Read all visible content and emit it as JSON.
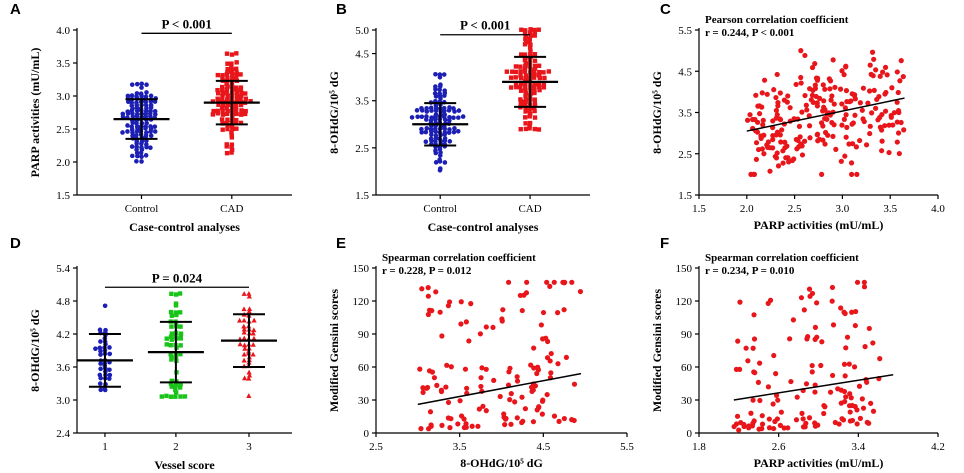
{
  "colors": {
    "blue": "#1c1fb4",
    "red": "#e8161b",
    "green": "#19c419",
    "black": "#000000"
  },
  "chart_data": [
    {
      "id": "A",
      "letter": "A",
      "type": "scatter",
      "ylabel": "PARP activities (mU/mL)",
      "xlabel": "Case-control analyses",
      "ylim": [
        1.5,
        4.0
      ],
      "yticks": [
        1.5,
        2.0,
        2.5,
        3.0,
        3.5,
        4.0
      ],
      "ytick_labels": [
        "1.5",
        "2.0",
        "2.5",
        "3.0",
        "3.5",
        "4.0"
      ],
      "categories": [
        "Control",
        "CAD"
      ],
      "groups": [
        {
          "name": "Control",
          "color": "blue",
          "marker": "circle",
          "n": 120,
          "mean": 2.65,
          "sd": 0.3,
          "min": 2.0,
          "max": 3.18
        },
        {
          "name": "CAD",
          "color": "red",
          "marker": "square",
          "n": 120,
          "mean": 2.9,
          "sd": 0.33,
          "min": 2.15,
          "max": 3.62
        }
      ],
      "bracket": {
        "from": 0,
        "to": 1,
        "y": 3.95,
        "text": "P < 0.001"
      }
    },
    {
      "id": "B",
      "letter": "B",
      "type": "scatter",
      "ylabel": "8-OHdG/10⁵ dG",
      "xlabel": "Case-control analyses",
      "ylim": [
        1.5,
        5.0
      ],
      "yticks": [
        1.5,
        2.5,
        3.5,
        4.5,
        5.0
      ],
      "ytick_labels": [
        "1.5",
        "2.5",
        "3.5",
        "4.5",
        "5.0"
      ],
      "categories": [
        "Control",
        "CAD"
      ],
      "groups": [
        {
          "name": "Control",
          "color": "blue",
          "marker": "circle",
          "n": 120,
          "mean": 3.0,
          "sd": 0.45,
          "min": 2.0,
          "max": 4.05
        },
        {
          "name": "CAD",
          "color": "red",
          "marker": "square",
          "n": 120,
          "mean": 3.9,
          "sd": 0.53,
          "min": 2.9,
          "max": 4.98
        }
      ],
      "bracket": {
        "from": 0,
        "to": 1,
        "y": 4.9,
        "text": "P < 0.001"
      }
    },
    {
      "id": "C",
      "letter": "C",
      "type": "scatter",
      "ylabel": "8-OHdG/10⁵ dG",
      "xlabel": "PARP activities (mU/mL)",
      "xlim": [
        1.5,
        4.0
      ],
      "xticks": [
        1.5,
        2.0,
        2.5,
        3.0,
        3.5,
        4.0
      ],
      "xtick_labels": [
        "1.5",
        "2.0",
        "2.5",
        "3.0",
        "3.5",
        "4.0"
      ],
      "ylim": [
        1.5,
        5.5
      ],
      "yticks": [
        1.5,
        2.5,
        3.5,
        4.5,
        5.5
      ],
      "ytick_labels": [
        "1.5",
        "2.5",
        "3.5",
        "4.5",
        "5.5"
      ],
      "color": "red",
      "n": 240,
      "xrange": [
        2.0,
        3.65
      ],
      "yrange": [
        2.0,
        5.0
      ],
      "fit": {
        "x1": 2.0,
        "y1": 3.05,
        "x2": 3.65,
        "y2": 3.85
      },
      "annotation": [
        "Pearson correlation coefficient",
        "r = 0.244, P < 0.001"
      ]
    },
    {
      "id": "D",
      "letter": "D",
      "type": "scatter",
      "ylabel": "8-OHdG/10⁵ dG",
      "xlabel": "Vessel score",
      "ylim": [
        2.4,
        5.4
      ],
      "yticks": [
        2.4,
        3.0,
        3.6,
        4.2,
        4.8,
        5.4
      ],
      "ytick_labels": [
        "2.4",
        "3.0",
        "3.6",
        "4.2",
        "4.8",
        "5.4"
      ],
      "categories": [
        "1",
        "2",
        "3"
      ],
      "groups": [
        {
          "name": "1",
          "color": "blue",
          "marker": "circle",
          "n": 40,
          "mean": 3.72,
          "sd": 0.48,
          "min": 3.2,
          "max": 4.7
        },
        {
          "name": "2",
          "color": "green",
          "marker": "square",
          "n": 55,
          "mean": 3.87,
          "sd": 0.55,
          "min": 3.1,
          "max": 4.95
        },
        {
          "name": "3",
          "color": "red",
          "marker": "triangle",
          "n": 45,
          "mean": 4.08,
          "sd": 0.48,
          "min": 3.05,
          "max": 4.92
        }
      ],
      "bracket": {
        "from": 0,
        "to": 2,
        "y": 5.05,
        "text": "P = 0.024"
      }
    },
    {
      "id": "E",
      "letter": "E",
      "type": "scatter",
      "ylabel": "Modified Gensini scores",
      "xlabel": "8-OHdG/10⁵ dG",
      "xlim": [
        2.5,
        5.5
      ],
      "xticks": [
        2.5,
        3.5,
        4.5,
        5.5
      ],
      "xtick_labels": [
        "2.5",
        "3.5",
        "4.5",
        "5.5"
      ],
      "ylim": [
        0,
        150
      ],
      "yticks": [
        0,
        30,
        60,
        90,
        120,
        150
      ],
      "ytick_labels": [
        "0",
        "30",
        "60",
        "90",
        "120",
        "150"
      ],
      "color": "red",
      "n": 140,
      "xrange": [
        3.0,
        4.95
      ],
      "yrange": [
        2,
        137
      ],
      "fit": {
        "x1": 3.0,
        "y1": 26,
        "x2": 4.95,
        "y2": 54
      },
      "annotation": [
        "Spearman correlation coefficient",
        "r = 0.228, P = 0.012"
      ]
    },
    {
      "id": "F",
      "letter": "F",
      "type": "scatter",
      "ylabel": "Modified Gensini scores",
      "xlabel": "PARP activities (mU/mL)",
      "xlim": [
        1.8,
        4.2
      ],
      "xticks": [
        1.8,
        2.6,
        3.4,
        4.2
      ],
      "xtick_labels": [
        "1.8",
        "2.6",
        "3.4",
        "4.2"
      ],
      "ylim": [
        0,
        150
      ],
      "yticks": [
        0,
        30,
        60,
        90,
        120,
        150
      ],
      "ytick_labels": [
        "0",
        "30",
        "60",
        "90",
        "120",
        "150"
      ],
      "color": "red",
      "n": 140,
      "xrange": [
        2.15,
        3.62
      ],
      "yrange": [
        2,
        137
      ],
      "fit": {
        "x1": 2.15,
        "y1": 30,
        "x2": 3.75,
        "y2": 53
      },
      "annotation": [
        "Spearman correlation coefficient",
        "r = 0.234, P = 0.010"
      ]
    }
  ]
}
